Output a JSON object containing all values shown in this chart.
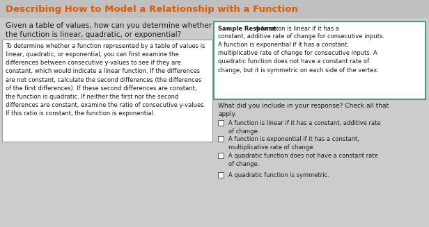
{
  "title": "Describing How to Model a Relationship with a Function",
  "title_color": "#e05a00",
  "bg_color": "#cccccc",
  "question_text": "Given a table of values, how can you determine whether\nthe function is linear, quadratic, or exponential?",
  "answer_box_text": "To determine whether a function represented by a table of values is\nlinear, quadratic, or exponential, you can first examine the\ndifferences between consecutive y-values to see if they are\nconstant, which would indicate a linear function. If the differences\nare not constant, calculate the second differences (the differences\nof the first differences). If these second differences are constant,\nthe function is quadratic. If neither the first nor the second\ndifferences are constant, examine the ratio of consecutive y-values.\nIf this ratio is constant, the function is exponential.",
  "sample_response_label": "Sample Response:",
  "sample_response_text": " A function is linear if it has a\nconstant, additive rate of change for consecutive inputs.\nA function is exponential if it has a constant,\nmultiplicative rate of change for consecutive inputs. A\nquadratic function does not have a constant rate of\nchange, but it is symmetric on each side of the vertex.",
  "checklist_heading": "What did you include in your response? Check all that\napply.",
  "checklist_items": [
    "A function is linear if it has a constant, additive rate\nof change.",
    "A function is exponential if it has a constant,\nmultiplicative rate of change.",
    "A quadratic function does not have a constant rate\nof change.",
    "A quadratic function is symmetric."
  ],
  "sample_box_border_color": "#4a9a8a",
  "answer_box_border_color": "#999999",
  "text_color": "#1a1a1a",
  "title_bg_color": "#c0c0c0",
  "font_size_title": 9.5,
  "font_size_question": 7.5,
  "font_size_body": 6.0,
  "font_size_sample": 6.0,
  "font_size_checklist": 6.5
}
